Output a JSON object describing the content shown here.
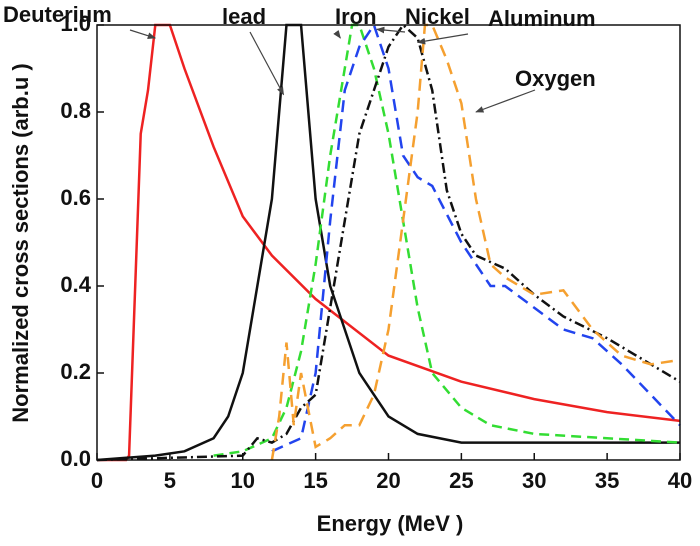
{
  "chart_data": {
    "type": "line",
    "xlabel": "Energy (MeV )",
    "ylabel": "Normalized cross sections (arb.u )",
    "xlim": [
      0,
      40
    ],
    "ylim": [
      0,
      1
    ],
    "xticks": [
      0,
      5,
      10,
      15,
      20,
      25,
      30,
      35,
      40
    ],
    "yticks": [
      {
        "value": 0,
        "label": "0.0"
      },
      0.2,
      0.4,
      0.6,
      0.8,
      {
        "value": 1,
        "label": "1.0"
      }
    ],
    "annotations": [
      {
        "text": "Deuterium"
      },
      {
        "text": "lead"
      },
      {
        "text": "Iron"
      },
      {
        "text": "Nickel"
      },
      {
        "text": "Aluminum"
      },
      {
        "text": "Oxygen"
      }
    ],
    "series": [
      {
        "name": "Deuterium",
        "color": "#ee2222",
        "dash": "none",
        "x": [
          0,
          2,
          2.2,
          3,
          3.5,
          4,
          5,
          6,
          8,
          10,
          12,
          15,
          20,
          25,
          30,
          35,
          40
        ],
        "values": [
          0,
          0,
          0.01,
          0.75,
          0.85,
          1.0,
          1.0,
          0.9,
          0.72,
          0.56,
          0.47,
          0.37,
          0.24,
          0.18,
          0.14,
          0.11,
          0.09
        ]
      },
      {
        "name": "lead",
        "color": "#111111",
        "dash": "none",
        "x": [
          0,
          4,
          6,
          8,
          9,
          10,
          11,
          12,
          12.5,
          13,
          14,
          14.5,
          15,
          16,
          18,
          20,
          22,
          25,
          30,
          40
        ],
        "values": [
          0,
          0.01,
          0.02,
          0.05,
          0.1,
          0.2,
          0.4,
          0.6,
          0.8,
          1.0,
          1.0,
          0.8,
          0.6,
          0.4,
          0.2,
          0.1,
          0.06,
          0.04,
          0.04,
          0.04
        ]
      },
      {
        "name": "Iron",
        "color": "#33dd33",
        "dash": "10 6",
        "x": [
          8,
          10,
          12,
          13,
          14,
          15,
          16,
          17,
          17.5,
          18,
          19,
          20,
          21,
          22,
          23,
          25,
          27,
          30,
          35,
          40
        ],
        "values": [
          0.01,
          0.02,
          0.05,
          0.12,
          0.25,
          0.45,
          0.7,
          0.9,
          1.0,
          1.0,
          0.9,
          0.75,
          0.55,
          0.35,
          0.2,
          0.12,
          0.08,
          0.06,
          0.05,
          0.04
        ]
      },
      {
        "name": "Nickel",
        "color": "#2244ee",
        "dash": "12 7",
        "x": [
          12,
          14,
          15,
          16,
          17,
          18,
          19,
          20,
          21,
          22,
          23,
          25,
          27,
          28,
          30,
          32,
          34,
          36,
          38,
          40
        ],
        "values": [
          0.02,
          0.05,
          0.2,
          0.55,
          0.85,
          0.95,
          1.0,
          0.9,
          0.7,
          0.65,
          0.63,
          0.5,
          0.4,
          0.4,
          0.35,
          0.3,
          0.28,
          0.22,
          0.15,
          0.08
        ]
      },
      {
        "name": "Aluminum",
        "color": "#111111",
        "dash": "10 4 2 4",
        "x": [
          0,
          10,
          11,
          12,
          13,
          14,
          15,
          16,
          17,
          18,
          19,
          20,
          21,
          22,
          23,
          24,
          25,
          26,
          28,
          30,
          32,
          35,
          38,
          40
        ],
        "values": [
          0,
          0.01,
          0.05,
          0.04,
          0.06,
          0.12,
          0.15,
          0.35,
          0.55,
          0.75,
          0.85,
          0.95,
          1.0,
          0.97,
          0.85,
          0.62,
          0.52,
          0.47,
          0.44,
          0.38,
          0.33,
          0.28,
          0.22,
          0.18
        ]
      },
      {
        "name": "Oxygen",
        "color": "#f5a030",
        "dash": "12 7",
        "x": [
          12,
          12.5,
          13,
          13.5,
          14,
          15,
          16,
          17,
          18,
          19,
          20,
          21,
          22,
          22.5,
          23,
          24,
          25,
          26,
          27,
          28,
          30,
          32,
          34,
          36,
          38,
          40
        ],
        "values": [
          0,
          0.1,
          0.27,
          0.08,
          0.2,
          0.03,
          0.05,
          0.08,
          0.08,
          0.15,
          0.3,
          0.55,
          0.8,
          1.0,
          1.0,
          0.92,
          0.82,
          0.6,
          0.45,
          0.42,
          0.38,
          0.39,
          0.3,
          0.24,
          0.22,
          0.23
        ]
      }
    ]
  }
}
